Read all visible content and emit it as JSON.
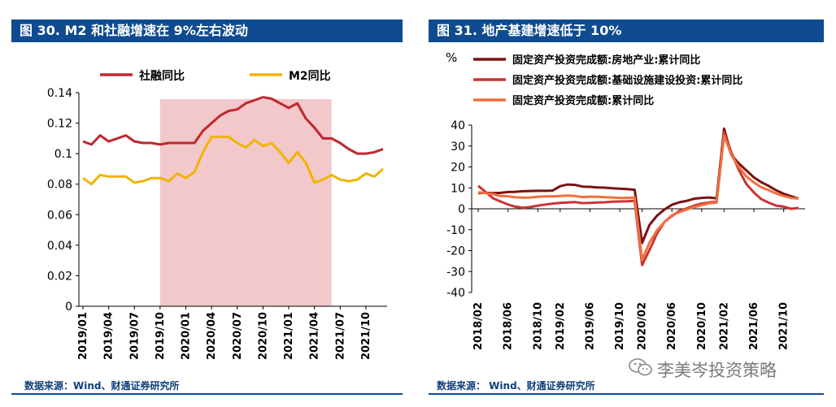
{
  "chart_data": [
    {
      "type": "line",
      "title": "图 30. M2 和社融增速在 9%左右波动",
      "source": "数据来源：Wind、财通证券研究所",
      "x": [
        "2019/01",
        "2019/02",
        "2019/03",
        "2019/04",
        "2019/05",
        "2019/06",
        "2019/07",
        "2019/08",
        "2019/09",
        "2019/10",
        "2019/11",
        "2019/12",
        "2020/01",
        "2020/02",
        "2020/03",
        "2020/04",
        "2020/05",
        "2020/06",
        "2020/07",
        "2020/08",
        "2020/09",
        "2020/10",
        "2020/11",
        "2020/12",
        "2021/01",
        "2021/02",
        "2021/03",
        "2021/04",
        "2021/05",
        "2021/06",
        "2021/07",
        "2021/08",
        "2021/09",
        "2021/10",
        "2021/11",
        "2021/12"
      ],
      "tick_labels": [
        "2019/01",
        "2019/04",
        "2019/07",
        "2019/10",
        "2020/01",
        "2020/04",
        "2020/07",
        "2020/10",
        "2021/01",
        "2021/04",
        "2021/07",
        "2021/10"
      ],
      "series": [
        {
          "name": "社融同比",
          "color": "#c0272d",
          "values": [
            0.108,
            0.106,
            0.112,
            0.108,
            0.11,
            0.112,
            0.108,
            0.107,
            0.107,
            0.106,
            0.107,
            0.107,
            0.107,
            0.107,
            0.115,
            0.12,
            0.125,
            0.128,
            0.129,
            0.133,
            0.135,
            0.137,
            0.136,
            0.133,
            0.13,
            0.133,
            0.123,
            0.117,
            0.11,
            0.11,
            0.107,
            0.103,
            0.1,
            0.1,
            0.101,
            0.103
          ]
        },
        {
          "name": "M2同比",
          "color": "#f0b400",
          "values": [
            0.084,
            0.08,
            0.086,
            0.085,
            0.085,
            0.085,
            0.081,
            0.082,
            0.084,
            0.084,
            0.082,
            0.087,
            0.084,
            0.088,
            0.101,
            0.111,
            0.111,
            0.111,
            0.107,
            0.104,
            0.109,
            0.105,
            0.107,
            0.101,
            0.094,
            0.101,
            0.094,
            0.081,
            0.083,
            0.086,
            0.083,
            0.082,
            0.083,
            0.087,
            0.085,
            0.09
          ]
        }
      ],
      "shaded_range": [
        "2019/10",
        "2021/06"
      ],
      "ylim": [
        0,
        0.14
      ],
      "yticks": [
        "0",
        "0.02",
        "0.04",
        "0.06",
        "0.08",
        "0.1",
        "0.12",
        "0.14"
      ],
      "legend": "top"
    },
    {
      "type": "line",
      "title": "图 31. 地产基建增速低于 10%",
      "source": "数据来源： Wind、财通证券研究所",
      "unit": "%",
      "x": [
        "2018/02",
        "2018/03",
        "2018/04",
        "2018/05",
        "2018/06",
        "2018/07",
        "2018/08",
        "2018/09",
        "2018/10",
        "2018/11",
        "2018/12",
        "2019/02",
        "2019/03",
        "2019/04",
        "2019/05",
        "2019/06",
        "2019/07",
        "2019/08",
        "2019/09",
        "2019/10",
        "2019/11",
        "2019/12",
        "2020/02",
        "2020/03",
        "2020/04",
        "2020/05",
        "2020/06",
        "2020/07",
        "2020/08",
        "2020/09",
        "2020/10",
        "2020/11",
        "2020/12",
        "2021/02",
        "2021/03",
        "2021/04",
        "2021/05",
        "2021/06",
        "2021/07",
        "2021/08",
        "2021/09",
        "2021/10",
        "2021/11",
        "2021/12"
      ],
      "tick_labels": [
        "2018/02",
        "2018/06",
        "2018/10",
        "2019/02",
        "2019/06",
        "2019/10",
        "2020/02",
        "2020/06",
        "2020/10",
        "2021/02",
        "2021/06",
        "2021/10"
      ],
      "series": [
        {
          "name": "固定资产投资完成额:房地产业:累计同比",
          "color": "#7a1212",
          "values": [
            7.5,
            7.6,
            7.5,
            7.6,
            8.0,
            8.1,
            8.4,
            8.5,
            8.6,
            8.6,
            8.7,
            10.8,
            11.6,
            11.4,
            10.6,
            10.5,
            10.2,
            10.1,
            9.8,
            9.6,
            9.4,
            9.1,
            -16.3,
            -7.7,
            -3.3,
            -0.3,
            1.9,
            3.1,
            3.8,
            4.8,
            5.2,
            5.4,
            5.0,
            38.3,
            25.6,
            21.6,
            18.3,
            15.0,
            12.7,
            10.9,
            8.8,
            7.2,
            6.0,
            4.9
          ]
        },
        {
          "name": "固定资产投资完成额:基础设施建设投资:累计同比",
          "color": "#cc3333",
          "values": [
            11.0,
            8.0,
            5.0,
            3.5,
            2.0,
            1.0,
            0.5,
            0.8,
            1.5,
            2.0,
            2.5,
            2.8,
            3.0,
            3.2,
            2.7,
            2.8,
            3.0,
            3.1,
            3.4,
            3.5,
            3.6,
            3.8,
            -26.9,
            -19.7,
            -11.8,
            -6.3,
            -3.5,
            -1.0,
            0.2,
            1.5,
            2.5,
            3.0,
            3.4,
            36.6,
            26.8,
            18.4,
            11.8,
            7.8,
            4.6,
            2.9,
            1.5,
            1.0,
            0.0,
            0.4
          ]
        },
        {
          "name": "固定资产投资完成额:累计同比",
          "color": "#f07040",
          "values": [
            7.9,
            7.5,
            7.0,
            6.1,
            6.0,
            5.5,
            5.3,
            5.4,
            5.7,
            5.9,
            5.9,
            6.1,
            6.3,
            6.1,
            5.6,
            5.8,
            5.7,
            5.5,
            5.4,
            5.2,
            5.2,
            5.4,
            -24.5,
            -16.1,
            -10.3,
            -6.3,
            -3.1,
            -1.6,
            -0.3,
            0.8,
            1.8,
            2.6,
            2.9,
            35.0,
            25.6,
            19.9,
            15.4,
            12.6,
            10.3,
            8.9,
            7.3,
            6.1,
            5.2,
            4.9
          ]
        }
      ],
      "ylim": [
        -40,
        40
      ],
      "yticks": [
        "-40",
        "-30",
        "-20",
        "-10",
        "0",
        "10",
        "20",
        "30",
        "40"
      ],
      "legend": "top-left"
    }
  ],
  "watermark": {
    "text": "李美岑投资策略",
    "icon": "wechat-icon"
  }
}
